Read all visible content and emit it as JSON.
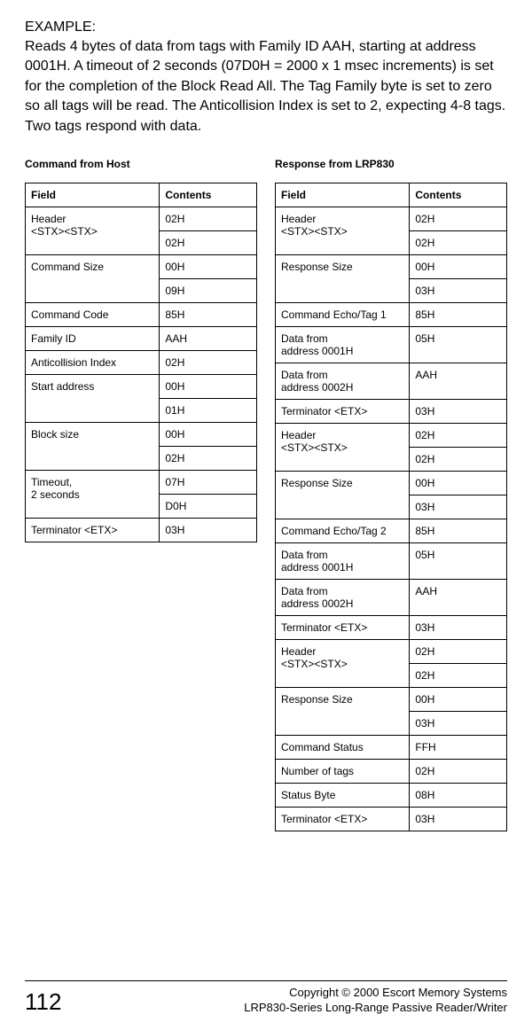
{
  "example_label": "EXAMPLE:",
  "intro": "Reads 4 bytes of data from tags with Family ID AAH, starting at address 0001H. A timeout of 2 seconds (07D0H = 2000 x 1 msec increments) is set for the completion of the Block Read All. The Tag Family byte is set to zero so all tags will be read.  The Anticollision Index is set to 2, expecting 4-8 tags.  Two tags respond with data.",
  "left": {
    "title": "Command from Host",
    "headers": {
      "field": "Field",
      "contents": "Contents"
    },
    "rows": [
      {
        "field": "Header\n<STX><STX>",
        "contents": "02H",
        "rowspan": 2
      },
      {
        "field": "",
        "contents": "02H",
        "continued": true
      },
      {
        "field": "Command Size",
        "contents": "00H",
        "rowspan": 2
      },
      {
        "field": "",
        "contents": "09H",
        "continued": true
      },
      {
        "field": "Command Code",
        "contents": "85H"
      },
      {
        "field": "Family ID",
        "contents": "AAH"
      },
      {
        "field": "Anticollision Index",
        "contents": "02H"
      },
      {
        "field": "Start address",
        "contents": "00H",
        "rowspan": 2
      },
      {
        "field": "",
        "contents": "01H",
        "continued": true
      },
      {
        "field": "Block size",
        "contents": "00H",
        "rowspan": 2
      },
      {
        "field": "",
        "contents": "02H",
        "continued": true
      },
      {
        "field": "Timeout,\n2 seconds",
        "contents": "07H",
        "rowspan": 2
      },
      {
        "field": "",
        "contents": "D0H",
        "continued": true
      },
      {
        "field": "Terminator <ETX>",
        "contents": "03H"
      }
    ]
  },
  "right": {
    "title": "Response from LRP830",
    "headers": {
      "field": "Field",
      "contents": "Contents"
    },
    "rows": [
      {
        "field": "Header\n<STX><STX>",
        "contents": "02H",
        "rowspan": 2
      },
      {
        "field": "",
        "contents": "02H",
        "continued": true
      },
      {
        "field": "Response Size",
        "contents": "00H",
        "rowspan": 2
      },
      {
        "field": "",
        "contents": "03H",
        "continued": true
      },
      {
        "field": "Command Echo/Tag 1",
        "contents": "85H"
      },
      {
        "field": "Data from\naddress 0001H",
        "contents": "05H"
      },
      {
        "field": "Data from\naddress 0002H",
        "contents": "AAH"
      },
      {
        "field": "Terminator <ETX>",
        "contents": "03H"
      },
      {
        "field": "Header\n<STX><STX>",
        "contents": "02H",
        "rowspan": 2
      },
      {
        "field": "",
        "contents": "02H",
        "continued": true
      },
      {
        "field": "Response Size",
        "contents": "00H",
        "rowspan": 2
      },
      {
        "field": "",
        "contents": "03H",
        "continued": true
      },
      {
        "field": "Command Echo/Tag 2",
        "contents": "85H"
      },
      {
        "field": "Data from\naddress 0001H",
        "contents": "05H"
      },
      {
        "field": "Data from\naddress 0002H",
        "contents": "AAH"
      },
      {
        "field": "Terminator <ETX>",
        "contents": "03H"
      },
      {
        "field": "Header\n<STX><STX>",
        "contents": "02H",
        "rowspan": 2
      },
      {
        "field": "",
        "contents": "02H",
        "continued": true
      },
      {
        "field": "Response Size",
        "contents": "00H",
        "rowspan": 2
      },
      {
        "field": "",
        "contents": "03H",
        "continued": true
      },
      {
        "field": "Command Status",
        "contents": "FFH"
      },
      {
        "field": "Number of tags",
        "contents": "02H"
      },
      {
        "field": "Status Byte",
        "contents": "08H"
      },
      {
        "field": "Terminator <ETX>",
        "contents": "03H"
      }
    ]
  },
  "footer": {
    "page": "112",
    "copyright": "Copyright © 2000 Escort Memory Systems",
    "product": "LRP830-Series Long-Range Passive Reader/Writer"
  }
}
